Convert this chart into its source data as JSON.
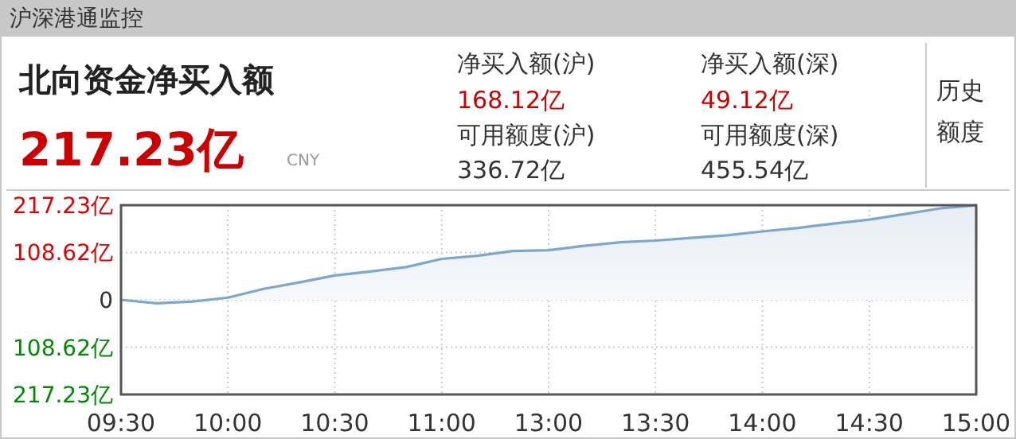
{
  "chart_data": {
    "type": "area",
    "title": "沪深港通监控",
    "subtitle": "北向资金净买入额",
    "annotations": [
      "217.23亿",
      "CNY",
      "净买入额(沪)",
      "168.12亿",
      "净买入额(深)",
      "49.12亿",
      "可用额度(沪)",
      "336.72亿",
      "可用额度(深)",
      "455.54亿",
      "历史额度"
    ],
    "categories": [
      "09:30",
      null,
      null,
      "10:00",
      null,
      null,
      "10:30",
      null,
      null,
      "11:00",
      null,
      null,
      "13:00",
      null,
      null,
      "13:30",
      null,
      null,
      "14:00",
      null,
      null,
      "14:30",
      null,
      null,
      "15:00"
    ],
    "values": [
      0,
      -8,
      -4,
      5,
      25,
      40,
      56,
      65,
      75,
      94,
      101,
      112,
      114,
      124,
      132,
      136,
      142,
      148,
      157,
      165,
      175,
      184,
      197,
      210,
      217
    ],
    "color": "#7ba7d0",
    "ylim": [
      -217.23,
      217.23
    ],
    "yticks": [
      {
        "value": 217.23,
        "label": "217.23亿"
      },
      {
        "value": 108.62,
        "label": "108.62亿"
      },
      0,
      {
        "value": -108.62,
        "label": "108.62亿"
      },
      {
        "value": -217.23,
        "label": "217.23亿"
      }
    ],
    "grid": true
  }
}
